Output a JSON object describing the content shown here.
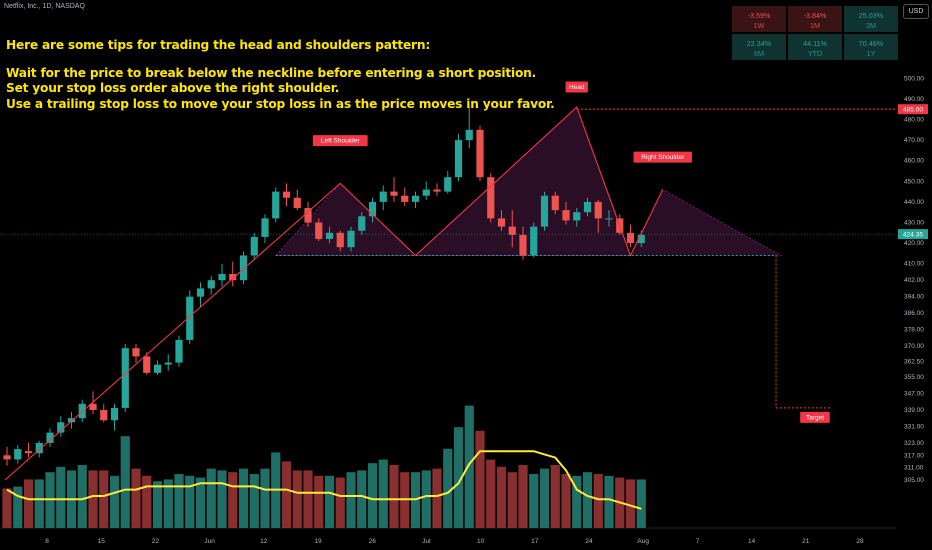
{
  "symbol_line": "Netflix, Inc., 1D, NASDAQ",
  "currency_button": "USD",
  "tips": {
    "heading": "Here are some tips for trading the head and shoulders pattern:",
    "lines": [
      "Wait for the price to break below the neckline before entering a short position.",
      "Set your stop loss order above the right shoulder.",
      "Use a trailing stop loss to move your stop loss in as the price moves in your favor."
    ]
  },
  "performance": [
    {
      "value": "-3.59%",
      "label": "1W",
      "status": "down"
    },
    {
      "value": "-3.84%",
      "label": "1M",
      "status": "down"
    },
    {
      "value": "25.03%",
      "label": "3M",
      "status": "up"
    },
    {
      "value": "22.34%",
      "label": "6M",
      "status": "up"
    },
    {
      "value": "44.11%",
      "label": "YTD",
      "status": "up"
    },
    {
      "value": "70.46%",
      "label": "1Y",
      "status": "up"
    }
  ],
  "colors": {
    "up": "#26a69a",
    "down": "#ef5350",
    "up_volume": "#1f6f66",
    "down_volume": "#8a2f2f",
    "pattern_line": "#f23645",
    "ma_line": "#ffeb3b",
    "tips_text": "#ffe600",
    "pattern_fill": "rgba(120,40,110,0.35)",
    "neckline": "#26a69a"
  },
  "chart_data": {
    "type": "candlestick",
    "title": "Netflix, Inc., 1D, NASDAQ",
    "y_ticks": [
      305,
      311,
      317,
      323,
      331,
      339,
      347,
      355,
      362.5,
      370,
      378,
      386,
      394,
      402,
      410,
      420,
      430,
      440,
      450,
      460,
      470,
      480,
      490,
      500
    ],
    "x_ticks": [
      "8",
      "15",
      "22",
      "Jun",
      "12",
      "19",
      "26",
      "Jul",
      "10",
      "17",
      "24",
      "Aug",
      "7",
      "14",
      "21",
      "28"
    ],
    "price_tags": [
      {
        "value": "485.00",
        "color": "#f23645"
      },
      {
        "value": "424.35",
        "color": "#26a69a"
      }
    ],
    "candles": [
      {
        "o": 317,
        "h": 321,
        "l": 312,
        "c": 315
      },
      {
        "o": 315,
        "h": 322,
        "l": 313,
        "c": 320
      },
      {
        "o": 319,
        "h": 323,
        "l": 316,
        "c": 318
      },
      {
        "o": 318,
        "h": 324,
        "l": 316,
        "c": 323
      },
      {
        "o": 323,
        "h": 330,
        "l": 321,
        "c": 328
      },
      {
        "o": 328,
        "h": 336,
        "l": 326,
        "c": 333
      },
      {
        "o": 333,
        "h": 338,
        "l": 330,
        "c": 335
      },
      {
        "o": 335,
        "h": 344,
        "l": 333,
        "c": 342
      },
      {
        "o": 342,
        "h": 348,
        "l": 337,
        "c": 339
      },
      {
        "o": 339,
        "h": 342,
        "l": 333,
        "c": 334
      },
      {
        "o": 334,
        "h": 342,
        "l": 329,
        "c": 340
      },
      {
        "o": 340,
        "h": 371,
        "l": 338,
        "c": 369
      },
      {
        "o": 369,
        "h": 371,
        "l": 362,
        "c": 365
      },
      {
        "o": 365,
        "h": 367,
        "l": 356,
        "c": 357
      },
      {
        "o": 357,
        "h": 363,
        "l": 356,
        "c": 361
      },
      {
        "o": 361,
        "h": 366,
        "l": 358,
        "c": 362
      },
      {
        "o": 362,
        "h": 375,
        "l": 360,
        "c": 373
      },
      {
        "o": 373,
        "h": 397,
        "l": 371,
        "c": 394
      },
      {
        "o": 394,
        "h": 401,
        "l": 389,
        "c": 398
      },
      {
        "o": 398,
        "h": 404,
        "l": 395,
        "c": 402
      },
      {
        "o": 402,
        "h": 410,
        "l": 399,
        "c": 405
      },
      {
        "o": 405,
        "h": 411,
        "l": 399,
        "c": 402
      },
      {
        "o": 402,
        "h": 416,
        "l": 400,
        "c": 414
      },
      {
        "o": 414,
        "h": 425,
        "l": 412,
        "c": 423
      },
      {
        "o": 423,
        "h": 434,
        "l": 420,
        "c": 432
      },
      {
        "o": 432,
        "h": 447,
        "l": 430,
        "c": 445
      },
      {
        "o": 445,
        "h": 449,
        "l": 438,
        "c": 442
      },
      {
        "o": 442,
        "h": 446,
        "l": 436,
        "c": 437
      },
      {
        "o": 437,
        "h": 440,
        "l": 428,
        "c": 430
      },
      {
        "o": 430,
        "h": 432,
        "l": 421,
        "c": 422
      },
      {
        "o": 422,
        "h": 428,
        "l": 420,
        "c": 425
      },
      {
        "o": 425,
        "h": 426,
        "l": 416,
        "c": 418
      },
      {
        "o": 418,
        "h": 428,
        "l": 416,
        "c": 426
      },
      {
        "o": 426,
        "h": 435,
        "l": 424,
        "c": 433
      },
      {
        "o": 433,
        "h": 442,
        "l": 430,
        "c": 440
      },
      {
        "o": 440,
        "h": 448,
        "l": 436,
        "c": 445
      },
      {
        "o": 445,
        "h": 452,
        "l": 440,
        "c": 443
      },
      {
        "o": 443,
        "h": 447,
        "l": 438,
        "c": 440
      },
      {
        "o": 440,
        "h": 445,
        "l": 437,
        "c": 443
      },
      {
        "o": 443,
        "h": 450,
        "l": 441,
        "c": 446
      },
      {
        "o": 446,
        "h": 449,
        "l": 443,
        "c": 445
      },
      {
        "o": 445,
        "h": 455,
        "l": 444,
        "c": 452
      },
      {
        "o": 452,
        "h": 473,
        "l": 450,
        "c": 470
      },
      {
        "o": 470,
        "h": 486,
        "l": 466,
        "c": 475
      },
      {
        "o": 475,
        "h": 477,
        "l": 450,
        "c": 452
      },
      {
        "o": 452,
        "h": 454,
        "l": 430,
        "c": 432
      },
      {
        "o": 432,
        "h": 436,
        "l": 426,
        "c": 428
      },
      {
        "o": 428,
        "h": 436,
        "l": 418,
        "c": 424
      },
      {
        "o": 424,
        "h": 428,
        "l": 412,
        "c": 414
      },
      {
        "o": 414,
        "h": 430,
        "l": 413,
        "c": 428
      },
      {
        "o": 428,
        "h": 445,
        "l": 426,
        "c": 443
      },
      {
        "o": 443,
        "h": 445,
        "l": 434,
        "c": 436
      },
      {
        "o": 436,
        "h": 440,
        "l": 429,
        "c": 431
      },
      {
        "o": 431,
        "h": 437,
        "l": 428,
        "c": 435
      },
      {
        "o": 435,
        "h": 442,
        "l": 433,
        "c": 440
      },
      {
        "o": 440,
        "h": 441,
        "l": 425,
        "c": 432
      },
      {
        "o": 432,
        "h": 436,
        "l": 428,
        "c": 432
      },
      {
        "o": 432,
        "h": 434,
        "l": 424,
        "c": 425
      },
      {
        "o": 425,
        "h": 429,
        "l": 418,
        "c": 420
      },
      {
        "o": 420,
        "h": 426,
        "l": 418,
        "c": 424
      }
    ],
    "volume": [
      22,
      23,
      27,
      27,
      31,
      34,
      32,
      35,
      32,
      32,
      29,
      51,
      33,
      29,
      26,
      27,
      30,
      29,
      28,
      33,
      32,
      31,
      33,
      30,
      33,
      42,
      37,
      32,
      32,
      29,
      29,
      28,
      31,
      32,
      36,
      38,
      35,
      31,
      31,
      32,
      33,
      44,
      56,
      68,
      54,
      38,
      34,
      31,
      35,
      30,
      33,
      35,
      30,
      29,
      31,
      30,
      29,
      28,
      27,
      27
    ],
    "moving_average": [
      312,
      310,
      309,
      309,
      309,
      309,
      309,
      309,
      310,
      310,
      311,
      312,
      312,
      313,
      313,
      313,
      313,
      313,
      314,
      314,
      314,
      313,
      313,
      313,
      312,
      312,
      312,
      311,
      311,
      311,
      311,
      310,
      310,
      310,
      309,
      309,
      309,
      309,
      309,
      310,
      310,
      311,
      314,
      320,
      324,
      324,
      324,
      324,
      324,
      324,
      323,
      322,
      318,
      312,
      310,
      309,
      309,
      308,
      307,
      306
    ],
    "pattern_annotations": [
      {
        "text": "Left Shoulder"
      },
      {
        "text": "Head"
      },
      {
        "text": "Right Shoulder"
      },
      {
        "text": "Target"
      }
    ],
    "neckline_price": 414,
    "target_price": 340
  }
}
